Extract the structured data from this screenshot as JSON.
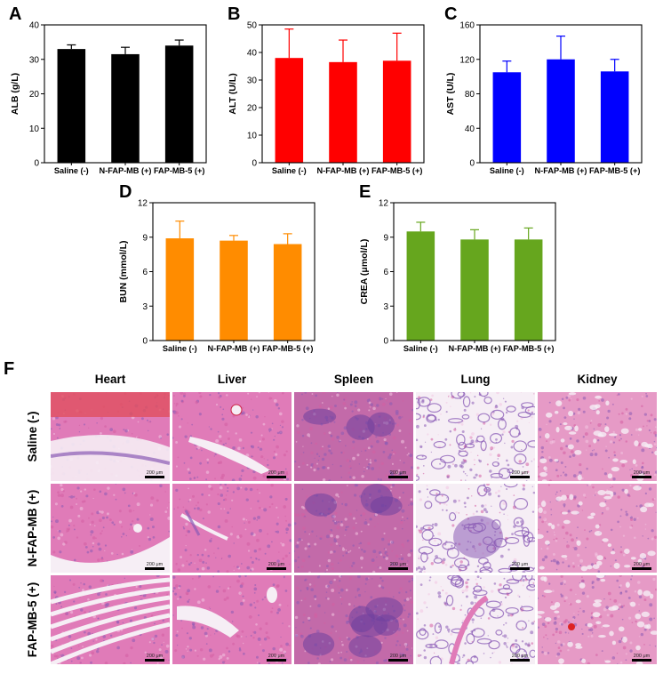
{
  "figure_f_letter": "F",
  "chart_data": [
    {
      "id": "A",
      "type": "bar",
      "letter": "A",
      "ylabel": "ALB (g/L)",
      "ylim": [
        0,
        40
      ],
      "yticks": [
        0,
        10,
        20,
        30,
        40
      ],
      "categories": [
        "Saline (-)",
        "N-FAP-MB (+)",
        "FAP-MB-5 (+)"
      ],
      "values": [
        33,
        31.5,
        34
      ],
      "errors": [
        1.2,
        2.0,
        1.6
      ],
      "color": "#000000"
    },
    {
      "id": "B",
      "type": "bar",
      "letter": "B",
      "ylabel": "ALT (U/L)",
      "ylim": [
        0,
        50
      ],
      "yticks": [
        0,
        10,
        20,
        30,
        40,
        50
      ],
      "categories": [
        "Saline (-)",
        "N-FAP-MB (+)",
        "FAP-MB-5 (+)"
      ],
      "values": [
        38,
        36.5,
        37
      ],
      "errors": [
        10.5,
        8,
        10
      ],
      "color": "#ff0000"
    },
    {
      "id": "C",
      "type": "bar",
      "letter": "C",
      "ylabel": "AST (U/L)",
      "ylim": [
        0,
        160
      ],
      "yticks": [
        0,
        40,
        80,
        120,
        160
      ],
      "categories": [
        "Saline (-)",
        "N-FAP-MB (+)",
        "FAP-MB-5 (+)"
      ],
      "values": [
        105,
        120,
        106
      ],
      "errors": [
        13,
        27,
        14
      ],
      "color": "#0000ff"
    },
    {
      "id": "D",
      "type": "bar",
      "letter": "D",
      "ylabel": "BUN (mmol/L)",
      "ylim": [
        0,
        12
      ],
      "yticks": [
        0,
        3,
        6,
        9,
        12
      ],
      "categories": [
        "Saline (-)",
        "N-FAP-MB (+)",
        "FAP-MB-5 (+)"
      ],
      "values": [
        8.9,
        8.7,
        8.4
      ],
      "errors": [
        1.5,
        0.45,
        0.9
      ],
      "color": "#ff8c00"
    },
    {
      "id": "E",
      "type": "bar",
      "letter": "E",
      "ylabel": "CREA (μmol/L)",
      "ylim": [
        0,
        12
      ],
      "yticks": [
        0,
        3,
        6,
        9,
        12
      ],
      "categories": [
        "Saline (-)",
        "N-FAP-MB (+)",
        "FAP-MB-5 (+)"
      ],
      "values": [
        9.5,
        8.8,
        8.8
      ],
      "errors": [
        0.8,
        0.85,
        1.0
      ],
      "color": "#66a61e"
    }
  ],
  "histology": {
    "columns": [
      "Heart",
      "Liver",
      "Spleen",
      "Lung",
      "Kidney"
    ],
    "rows": [
      "Saline (-)",
      "N-FAP-MB (+)",
      "FAP-MB-5 (+)"
    ],
    "scale_bar_label": "200 μm",
    "palette": {
      "pink": "#e07bb8",
      "light": "#f3c7e1",
      "purple": "#8a5bb5",
      "dark": "#6d3f9e",
      "white": "#f6eef5"
    }
  }
}
